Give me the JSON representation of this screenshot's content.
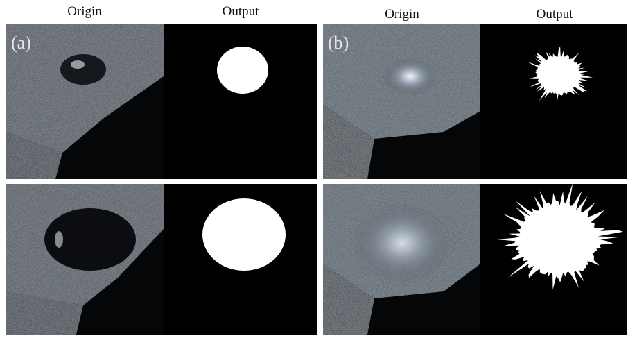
{
  "panels": [
    {
      "label": "(a)",
      "headers": [
        "Origin",
        "Output"
      ]
    },
    {
      "label": "(b)",
      "headers": [
        "Origin",
        "Output"
      ]
    }
  ]
}
